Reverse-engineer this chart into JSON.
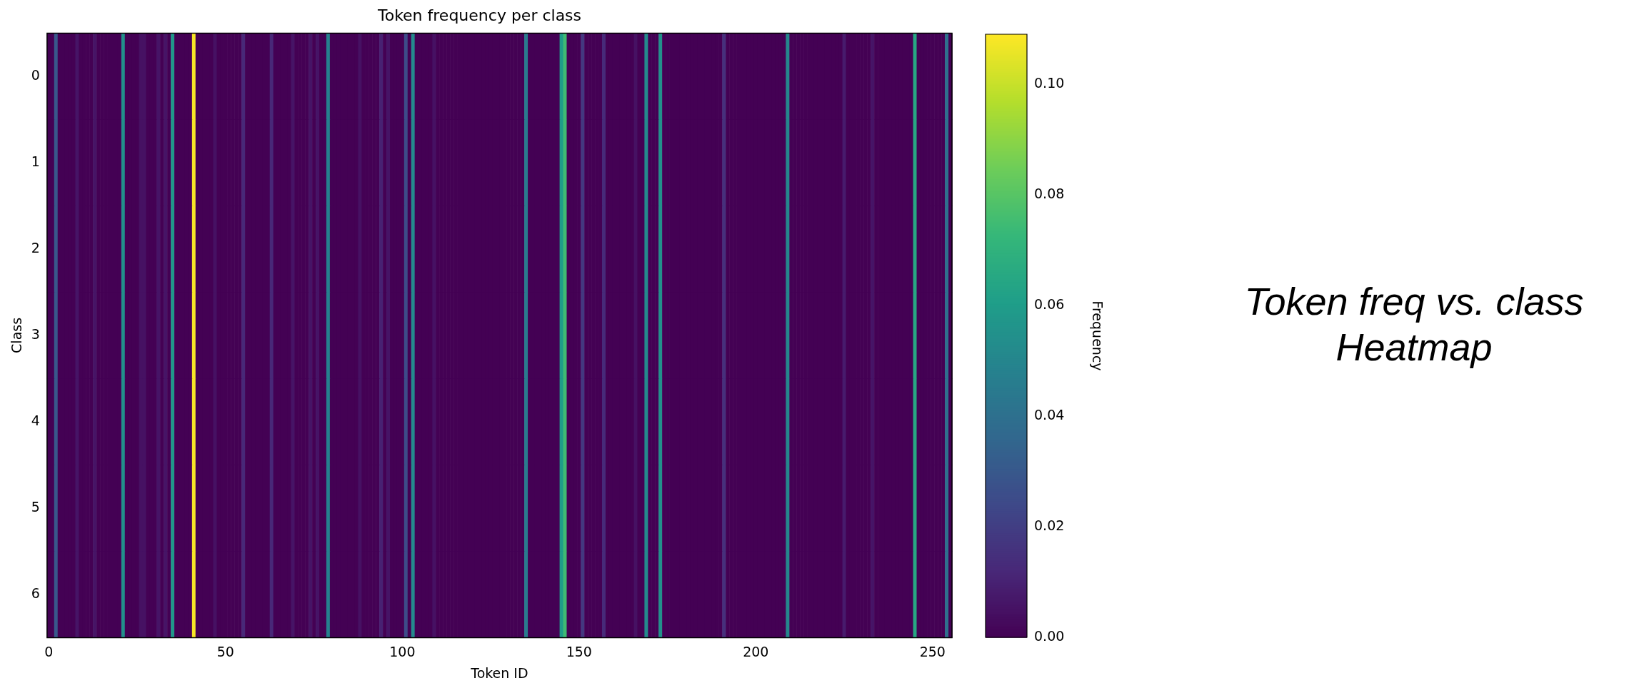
{
  "chart_data": {
    "type": "heatmap",
    "title": "Token frequency per class",
    "xlabel": "Token ID",
    "ylabel": "Class",
    "clabel": "Frequency",
    "categories": [
      "0",
      null,
      null,
      null,
      null,
      null,
      null,
      null,
      null,
      null,
      null,
      null,
      null,
      null,
      null,
      null,
      null,
      null,
      null,
      null,
      null,
      null,
      null,
      null,
      null,
      null,
      null,
      null,
      null,
      null,
      null,
      null,
      null,
      null,
      null,
      null,
      null,
      null,
      null,
      null,
      null,
      null,
      null,
      null,
      null,
      null,
      null,
      null,
      null,
      null,
      "50",
      null,
      null,
      null,
      null,
      null,
      null,
      null,
      null,
      null,
      null,
      null,
      null,
      null,
      null,
      null,
      null,
      null,
      null,
      null,
      null,
      null,
      null,
      null,
      null,
      null,
      null,
      null,
      null,
      null,
      null,
      null,
      null,
      null,
      null,
      null,
      null,
      null,
      null,
      null,
      null,
      null,
      null,
      null,
      null,
      null,
      null,
      null,
      null,
      null,
      "100",
      null,
      null,
      null,
      null,
      null,
      null,
      null,
      null,
      null,
      null,
      null,
      null,
      null,
      null,
      null,
      null,
      null,
      null,
      null,
      null,
      null,
      null,
      null,
      null,
      null,
      null,
      null,
      null,
      null,
      null,
      null,
      null,
      null,
      null,
      null,
      null,
      null,
      null,
      null,
      null,
      null,
      null,
      null,
      null,
      null,
      null,
      null,
      null,
      null,
      "150",
      null,
      null,
      null,
      null,
      null,
      null,
      null,
      null,
      null,
      null,
      null,
      null,
      null,
      null,
      null,
      null,
      null,
      null,
      null,
      null,
      null,
      null,
      null,
      null,
      null,
      null,
      null,
      null,
      null,
      null,
      null,
      null,
      null,
      null,
      null,
      null,
      null,
      null,
      null,
      null,
      null,
      null,
      null,
      null,
      null,
      null,
      null,
      null,
      null,
      "200",
      null,
      null,
      null,
      null,
      null,
      null,
      null,
      null,
      null,
      null,
      null,
      null,
      null,
      null,
      null,
      null,
      null,
      null,
      null,
      null,
      null,
      null,
      null,
      null,
      null,
      null,
      null,
      null,
      null,
      null,
      null,
      null,
      null,
      null,
      null,
      null,
      null,
      null,
      null,
      null,
      null,
      null,
      null,
      null,
      null,
      null,
      null,
      null,
      null,
      "250",
      null,
      null,
      null,
      null,
      null
    ],
    "y_categories": [
      "0",
      "1",
      "2",
      "3",
      "4",
      "5",
      "6"
    ],
    "cells": [
      [
        0,
        0,
        0.03,
        0,
        0,
        0,
        0,
        0,
        0.006,
        0,
        0,
        0,
        0,
        0.006,
        0,
        0,
        0,
        0,
        0,
        0,
        0,
        0.055,
        0,
        0,
        0,
        0,
        0.005,
        0.005,
        0,
        0,
        0,
        0.006,
        0,
        0.006,
        0,
        0.058,
        0,
        0,
        0,
        0,
        0,
        0.108,
        0,
        0,
        0,
        0,
        0,
        0.005,
        0,
        0,
        0,
        0,
        0,
        0,
        0,
        0.012,
        0,
        0,
        0,
        0,
        0,
        0,
        0,
        0.012,
        0,
        0,
        0,
        0,
        0,
        0.006,
        0,
        0,
        0,
        0,
        0.006,
        0,
        0.006,
        0,
        0,
        0.048,
        0,
        0,
        0,
        0,
        0,
        0,
        0,
        0,
        0.005,
        0,
        0,
        0,
        0,
        0,
        0.01,
        0,
        0.006,
        0,
        0,
        0,
        0,
        0.025,
        0,
        0.052,
        0,
        0,
        0,
        0,
        0,
        0.005,
        0,
        0,
        0,
        0,
        0,
        0,
        0,
        0,
        0,
        0,
        0,
        0,
        0,
        0,
        0,
        0,
        0,
        0,
        0,
        0,
        0,
        0,
        0,
        0,
        0,
        0.045,
        0,
        0,
        0,
        0,
        0,
        0,
        0,
        0,
        0,
        0.06,
        0.075,
        0,
        0,
        0,
        0,
        0.018,
        0,
        0,
        0,
        0,
        0,
        0.013,
        0,
        0,
        0,
        0,
        0,
        0,
        0,
        0,
        0.005,
        0,
        0,
        0.052,
        0,
        0,
        0,
        0.055,
        0,
        0,
        0,
        0,
        0,
        0,
        0,
        0,
        0,
        0,
        0,
        0,
        0,
        0,
        0,
        0,
        0,
        0.015,
        0,
        0,
        0,
        0,
        0,
        0,
        0,
        0,
        0,
        0,
        0,
        0,
        0,
        0,
        0,
        0,
        0,
        0.05,
        0,
        0,
        0,
        0,
        0,
        0,
        0,
        0,
        0,
        0,
        0,
        0,
        0,
        0,
        0,
        0.008,
        0,
        0,
        0,
        0,
        0,
        0,
        0,
        0.006,
        0,
        0,
        0,
        0,
        0,
        0,
        0,
        0,
        0,
        0,
        0,
        0.065,
        0,
        0,
        0,
        0,
        0,
        0,
        0,
        0,
        0.04,
        0
      ],
      [
        0,
        0,
        0.03,
        0,
        0,
        0,
        0,
        0,
        0.006,
        0,
        0,
        0,
        0,
        0.006,
        0,
        0,
        0,
        0,
        0,
        0,
        0,
        0.055,
        0,
        0,
        0,
        0,
        0.005,
        0.005,
        0,
        0,
        0,
        0.006,
        0,
        0.006,
        0,
        0.058,
        0,
        0,
        0,
        0,
        0,
        0.108,
        0,
        0,
        0,
        0,
        0,
        0.005,
        0,
        0,
        0,
        0,
        0,
        0,
        0,
        0.012,
        0,
        0,
        0,
        0,
        0,
        0,
        0,
        0.012,
        0,
        0,
        0,
        0,
        0,
        0.006,
        0,
        0,
        0,
        0,
        0.006,
        0,
        0.006,
        0,
        0,
        0.048,
        0,
        0,
        0,
        0,
        0,
        0,
        0,
        0,
        0.005,
        0,
        0,
        0,
        0,
        0,
        0.01,
        0,
        0.006,
        0,
        0,
        0,
        0,
        0.025,
        0,
        0.052,
        0,
        0,
        0,
        0,
        0,
        0.005,
        0,
        0,
        0,
        0,
        0,
        0,
        0,
        0,
        0,
        0,
        0,
        0,
        0,
        0,
        0,
        0,
        0,
        0,
        0,
        0,
        0,
        0,
        0,
        0,
        0,
        0.045,
        0,
        0,
        0,
        0,
        0,
        0,
        0,
        0,
        0,
        0.06,
        0.075,
        0,
        0,
        0,
        0,
        0.018,
        0,
        0,
        0,
        0,
        0,
        0.013,
        0,
        0,
        0,
        0,
        0,
        0,
        0,
        0,
        0.005,
        0,
        0,
        0.052,
        0,
        0,
        0,
        0.055,
        0,
        0,
        0,
        0,
        0,
        0,
        0,
        0,
        0,
        0,
        0,
        0,
        0,
        0,
        0,
        0,
        0,
        0.015,
        0,
        0,
        0,
        0,
        0,
        0,
        0,
        0,
        0,
        0,
        0,
        0,
        0,
        0,
        0,
        0,
        0,
        0.05,
        0,
        0,
        0,
        0,
        0,
        0,
        0,
        0,
        0,
        0,
        0,
        0,
        0,
        0,
        0,
        0.008,
        0,
        0,
        0,
        0,
        0,
        0,
        0,
        0.006,
        0,
        0,
        0,
        0,
        0,
        0,
        0,
        0,
        0,
        0,
        0,
        0.065,
        0,
        0,
        0,
        0,
        0,
        0,
        0,
        0,
        0.04,
        0
      ],
      [
        0,
        0,
        0.03,
        0,
        0,
        0,
        0,
        0,
        0.006,
        0,
        0,
        0,
        0,
        0.006,
        0,
        0,
        0,
        0,
        0,
        0,
        0,
        0.055,
        0,
        0,
        0,
        0,
        0.005,
        0.005,
        0,
        0,
        0,
        0.006,
        0,
        0.006,
        0,
        0.058,
        0,
        0,
        0,
        0,
        0,
        0.108,
        0,
        0,
        0,
        0,
        0,
        0.005,
        0,
        0,
        0,
        0,
        0,
        0,
        0,
        0.012,
        0,
        0,
        0,
        0,
        0,
        0,
        0,
        0.012,
        0,
        0,
        0,
        0,
        0,
        0.006,
        0,
        0,
        0,
        0,
        0.006,
        0,
        0.006,
        0,
        0,
        0.048,
        0,
        0,
        0,
        0,
        0,
        0,
        0,
        0,
        0.005,
        0,
        0,
        0,
        0,
        0,
        0.01,
        0,
        0.006,
        0,
        0,
        0,
        0,
        0.025,
        0,
        0.052,
        0,
        0,
        0,
        0,
        0,
        0.005,
        0,
        0,
        0,
        0,
        0,
        0,
        0,
        0,
        0,
        0,
        0,
        0,
        0,
        0,
        0,
        0,
        0,
        0,
        0,
        0,
        0,
        0,
        0,
        0,
        0,
        0.045,
        0,
        0,
        0,
        0,
        0,
        0,
        0,
        0,
        0,
        0.06,
        0.075,
        0,
        0,
        0,
        0,
        0.018,
        0,
        0,
        0,
        0,
        0,
        0.013,
        0,
        0,
        0,
        0,
        0,
        0,
        0,
        0,
        0.005,
        0,
        0,
        0.052,
        0,
        0,
        0,
        0.055,
        0,
        0,
        0,
        0,
        0,
        0,
        0,
        0,
        0,
        0,
        0,
        0,
        0,
        0,
        0,
        0,
        0,
        0.015,
        0,
        0,
        0,
        0,
        0,
        0,
        0,
        0,
        0,
        0,
        0,
        0,
        0,
        0,
        0,
        0,
        0,
        0.05,
        0,
        0,
        0,
        0,
        0,
        0,
        0,
        0,
        0,
        0,
        0,
        0,
        0,
        0,
        0,
        0.008,
        0,
        0,
        0,
        0,
        0,
        0,
        0,
        0.006,
        0,
        0,
        0,
        0,
        0,
        0,
        0,
        0,
        0,
        0,
        0,
        0.065,
        0,
        0,
        0,
        0,
        0,
        0,
        0,
        0,
        0.04,
        0
      ],
      [
        0,
        0,
        0.03,
        0,
        0,
        0,
        0,
        0,
        0.006,
        0,
        0,
        0,
        0,
        0.006,
        0,
        0,
        0,
        0,
        0,
        0,
        0,
        0.055,
        0,
        0,
        0,
        0,
        0.005,
        0.005,
        0,
        0,
        0,
        0.006,
        0,
        0.006,
        0,
        0.058,
        0,
        0,
        0,
        0,
        0,
        0.108,
        0,
        0,
        0,
        0,
        0,
        0.005,
        0,
        0,
        0,
        0,
        0,
        0,
        0,
        0.012,
        0,
        0,
        0,
        0,
        0,
        0,
        0,
        0.012,
        0,
        0,
        0,
        0,
        0,
        0.006,
        0,
        0,
        0,
        0,
        0.006,
        0,
        0.006,
        0,
        0,
        0.048,
        0,
        0,
        0,
        0,
        0,
        0,
        0,
        0,
        0.005,
        0,
        0,
        0,
        0,
        0,
        0.01,
        0,
        0.006,
        0,
        0,
        0,
        0,
        0.025,
        0,
        0.052,
        0,
        0,
        0,
        0,
        0,
        0.005,
        0,
        0,
        0,
        0,
        0,
        0,
        0,
        0,
        0,
        0,
        0,
        0,
        0,
        0,
        0,
        0,
        0,
        0,
        0,
        0,
        0,
        0,
        0,
        0,
        0,
        0.045,
        0,
        0,
        0,
        0,
        0,
        0,
        0,
        0,
        0,
        0.06,
        0.075,
        0,
        0,
        0,
        0,
        0.018,
        0,
        0,
        0,
        0,
        0,
        0.013,
        0,
        0,
        0,
        0,
        0,
        0,
        0,
        0,
        0.005,
        0,
        0,
        0.052,
        0,
        0,
        0,
        0.055,
        0,
        0,
        0,
        0,
        0,
        0,
        0,
        0,
        0,
        0,
        0,
        0,
        0,
        0,
        0,
        0,
        0,
        0.015,
        0,
        0,
        0,
        0,
        0,
        0,
        0,
        0,
        0,
        0,
        0,
        0,
        0,
        0,
        0,
        0,
        0,
        0.05,
        0,
        0,
        0,
        0,
        0,
        0,
        0,
        0,
        0,
        0,
        0,
        0,
        0,
        0,
        0,
        0.008,
        0,
        0,
        0,
        0,
        0,
        0,
        0,
        0.006,
        0,
        0,
        0,
        0,
        0,
        0,
        0,
        0,
        0,
        0,
        0,
        0.065,
        0,
        0,
        0,
        0,
        0,
        0,
        0,
        0,
        0.04,
        0
      ],
      [
        0,
        0,
        0.03,
        0,
        0,
        0,
        0,
        0,
        0.006,
        0,
        0,
        0,
        0,
        0.006,
        0,
        0,
        0,
        0,
        0,
        0,
        0,
        0.055,
        0,
        0,
        0,
        0,
        0.005,
        0.005,
        0,
        0,
        0,
        0.006,
        0,
        0.006,
        0,
        0.058,
        0,
        0,
        0,
        0,
        0,
        0.108,
        0,
        0,
        0,
        0,
        0,
        0.005,
        0,
        0,
        0,
        0,
        0,
        0,
        0,
        0.012,
        0,
        0,
        0,
        0,
        0,
        0,
        0,
        0.012,
        0,
        0,
        0,
        0,
        0,
        0.006,
        0,
        0,
        0,
        0,
        0.006,
        0,
        0.006,
        0,
        0,
        0.048,
        0,
        0,
        0,
        0,
        0,
        0,
        0,
        0,
        0.005,
        0,
        0,
        0,
        0,
        0,
        0.01,
        0,
        0.006,
        0,
        0,
        0,
        0,
        0.025,
        0,
        0.052,
        0,
        0,
        0,
        0,
        0,
        0.005,
        0,
        0,
        0,
        0,
        0,
        0,
        0,
        0,
        0,
        0,
        0,
        0,
        0,
        0,
        0,
        0,
        0,
        0,
        0,
        0,
        0,
        0,
        0,
        0,
        0,
        0.045,
        0,
        0,
        0,
        0,
        0,
        0,
        0,
        0,
        0,
        0.06,
        0.075,
        0,
        0,
        0,
        0,
        0.018,
        0,
        0,
        0,
        0,
        0,
        0.013,
        0,
        0,
        0,
        0,
        0,
        0,
        0,
        0,
        0.005,
        0,
        0,
        0.052,
        0,
        0,
        0,
        0.055,
        0,
        0,
        0,
        0,
        0,
        0,
        0,
        0,
        0,
        0,
        0,
        0,
        0,
        0,
        0,
        0,
        0,
        0.015,
        0,
        0,
        0,
        0,
        0,
        0,
        0,
        0,
        0,
        0,
        0,
        0,
        0,
        0,
        0,
        0,
        0,
        0.05,
        0,
        0,
        0,
        0,
        0,
        0,
        0,
        0,
        0,
        0,
        0,
        0,
        0,
        0,
        0,
        0.008,
        0,
        0,
        0,
        0,
        0,
        0,
        0,
        0.006,
        0,
        0,
        0,
        0,
        0,
        0,
        0,
        0,
        0,
        0,
        0,
        0.065,
        0,
        0,
        0,
        0,
        0,
        0,
        0,
        0,
        0.04,
        0
      ],
      [
        0,
        0,
        0.03,
        0,
        0,
        0,
        0,
        0,
        0.006,
        0,
        0,
        0,
        0,
        0.006,
        0,
        0,
        0,
        0,
        0,
        0,
        0,
        0.055,
        0,
        0,
        0,
        0,
        0.005,
        0.005,
        0,
        0,
        0,
        0.006,
        0,
        0.006,
        0,
        0.058,
        0,
        0,
        0,
        0,
        0,
        0.108,
        0,
        0,
        0,
        0,
        0,
        0.005,
        0,
        0,
        0,
        0,
        0,
        0,
        0,
        0.012,
        0,
        0,
        0,
        0,
        0,
        0,
        0,
        0.012,
        0,
        0,
        0,
        0,
        0,
        0.006,
        0,
        0,
        0,
        0,
        0.006,
        0,
        0.006,
        0,
        0,
        0.048,
        0,
        0,
        0,
        0,
        0,
        0,
        0,
        0,
        0.005,
        0,
        0,
        0,
        0,
        0,
        0.01,
        0,
        0.006,
        0,
        0,
        0,
        0,
        0.025,
        0,
        0.052,
        0,
        0,
        0,
        0,
        0,
        0.005,
        0,
        0,
        0,
        0,
        0,
        0,
        0,
        0,
        0,
        0,
        0,
        0,
        0,
        0,
        0,
        0,
        0,
        0,
        0,
        0,
        0,
        0,
        0,
        0,
        0,
        0.045,
        0,
        0,
        0,
        0,
        0,
        0,
        0,
        0,
        0,
        0.06,
        0.075,
        0,
        0,
        0,
        0,
        0.018,
        0,
        0,
        0,
        0,
        0,
        0.013,
        0,
        0,
        0,
        0,
        0,
        0,
        0,
        0,
        0.005,
        0,
        0,
        0.052,
        0,
        0,
        0,
        0.055,
        0,
        0,
        0,
        0,
        0,
        0,
        0,
        0,
        0,
        0,
        0,
        0,
        0,
        0,
        0,
        0,
        0,
        0.015,
        0,
        0,
        0,
        0,
        0,
        0,
        0,
        0,
        0,
        0,
        0,
        0,
        0,
        0,
        0,
        0,
        0,
        0.05,
        0,
        0,
        0,
        0,
        0,
        0,
        0,
        0,
        0,
        0,
        0,
        0,
        0,
        0,
        0,
        0.008,
        0,
        0,
        0,
        0,
        0,
        0,
        0,
        0.006,
        0,
        0,
        0,
        0,
        0,
        0,
        0,
        0,
        0,
        0,
        0,
        0.065,
        0,
        0,
        0,
        0,
        0,
        0,
        0,
        0,
        0.04,
        0
      ],
      [
        0,
        0,
        0.03,
        0,
        0,
        0,
        0,
        0,
        0.006,
        0,
        0,
        0,
        0,
        0.006,
        0,
        0,
        0,
        0,
        0,
        0,
        0,
        0.055,
        0,
        0,
        0,
        0,
        0.005,
        0.005,
        0,
        0,
        0,
        0.006,
        0,
        0.006,
        0,
        0.058,
        0,
        0,
        0,
        0,
        0,
        0.108,
        0,
        0,
        0,
        0,
        0,
        0.005,
        0,
        0,
        0,
        0,
        0,
        0,
        0,
        0.012,
        0,
        0,
        0,
        0,
        0,
        0,
        0,
        0.012,
        0,
        0,
        0,
        0,
        0,
        0.006,
        0,
        0,
        0,
        0,
        0.006,
        0,
        0.006,
        0,
        0,
        0.048,
        0,
        0,
        0,
        0,
        0,
        0,
        0,
        0,
        0.005,
        0,
        0,
        0,
        0,
        0,
        0.01,
        0,
        0.006,
        0,
        0,
        0,
        0,
        0.025,
        0,
        0.052,
        0,
        0,
        0,
        0,
        0,
        0.005,
        0,
        0,
        0,
        0,
        0,
        0,
        0,
        0,
        0,
        0,
        0,
        0,
        0,
        0,
        0,
        0,
        0,
        0,
        0,
        0,
        0,
        0,
        0,
        0,
        0,
        0.045,
        0,
        0,
        0,
        0,
        0,
        0,
        0,
        0,
        0,
        0.06,
        0.075,
        0,
        0,
        0,
        0,
        0.018,
        0,
        0,
        0,
        0,
        0,
        0.013,
        0,
        0,
        0,
        0,
        0,
        0,
        0,
        0,
        0.005,
        0,
        0,
        0.052,
        0,
        0,
        0,
        0.055,
        0,
        0,
        0,
        0,
        0,
        0,
        0,
        0,
        0,
        0,
        0,
        0,
        0,
        0,
        0,
        0,
        0,
        0.015,
        0,
        0,
        0,
        0,
        0,
        0,
        0,
        0,
        0,
        0,
        0,
        0,
        0,
        0,
        0,
        0,
        0,
        0.05,
        0,
        0,
        0,
        0,
        0,
        0,
        0,
        0,
        0,
        0,
        0,
        0,
        0,
        0,
        0,
        0.008,
        0,
        0,
        0,
        0,
        0,
        0,
        0,
        0.006,
        0,
        0,
        0,
        0,
        0,
        0,
        0,
        0,
        0,
        0,
        0,
        0.065,
        0,
        0,
        0,
        0,
        0,
        0,
        0,
        0,
        0.04,
        0
      ]
    ],
    "clim": [
      0,
      0.109
    ],
    "cticks": [
      {
        "value": 0,
        "label": "0.00"
      },
      {
        "value": 0.02,
        "label": "0.02"
      },
      {
        "value": 0.04,
        "label": "0.04"
      },
      {
        "value": 0.06,
        "label": "0.06"
      },
      {
        "value": 0.08,
        "label": "0.08"
      },
      {
        "value": 0.1,
        "label": "0.10"
      }
    ],
    "annotations": [
      "Token freq vs. class Heatmap"
    ]
  }
}
